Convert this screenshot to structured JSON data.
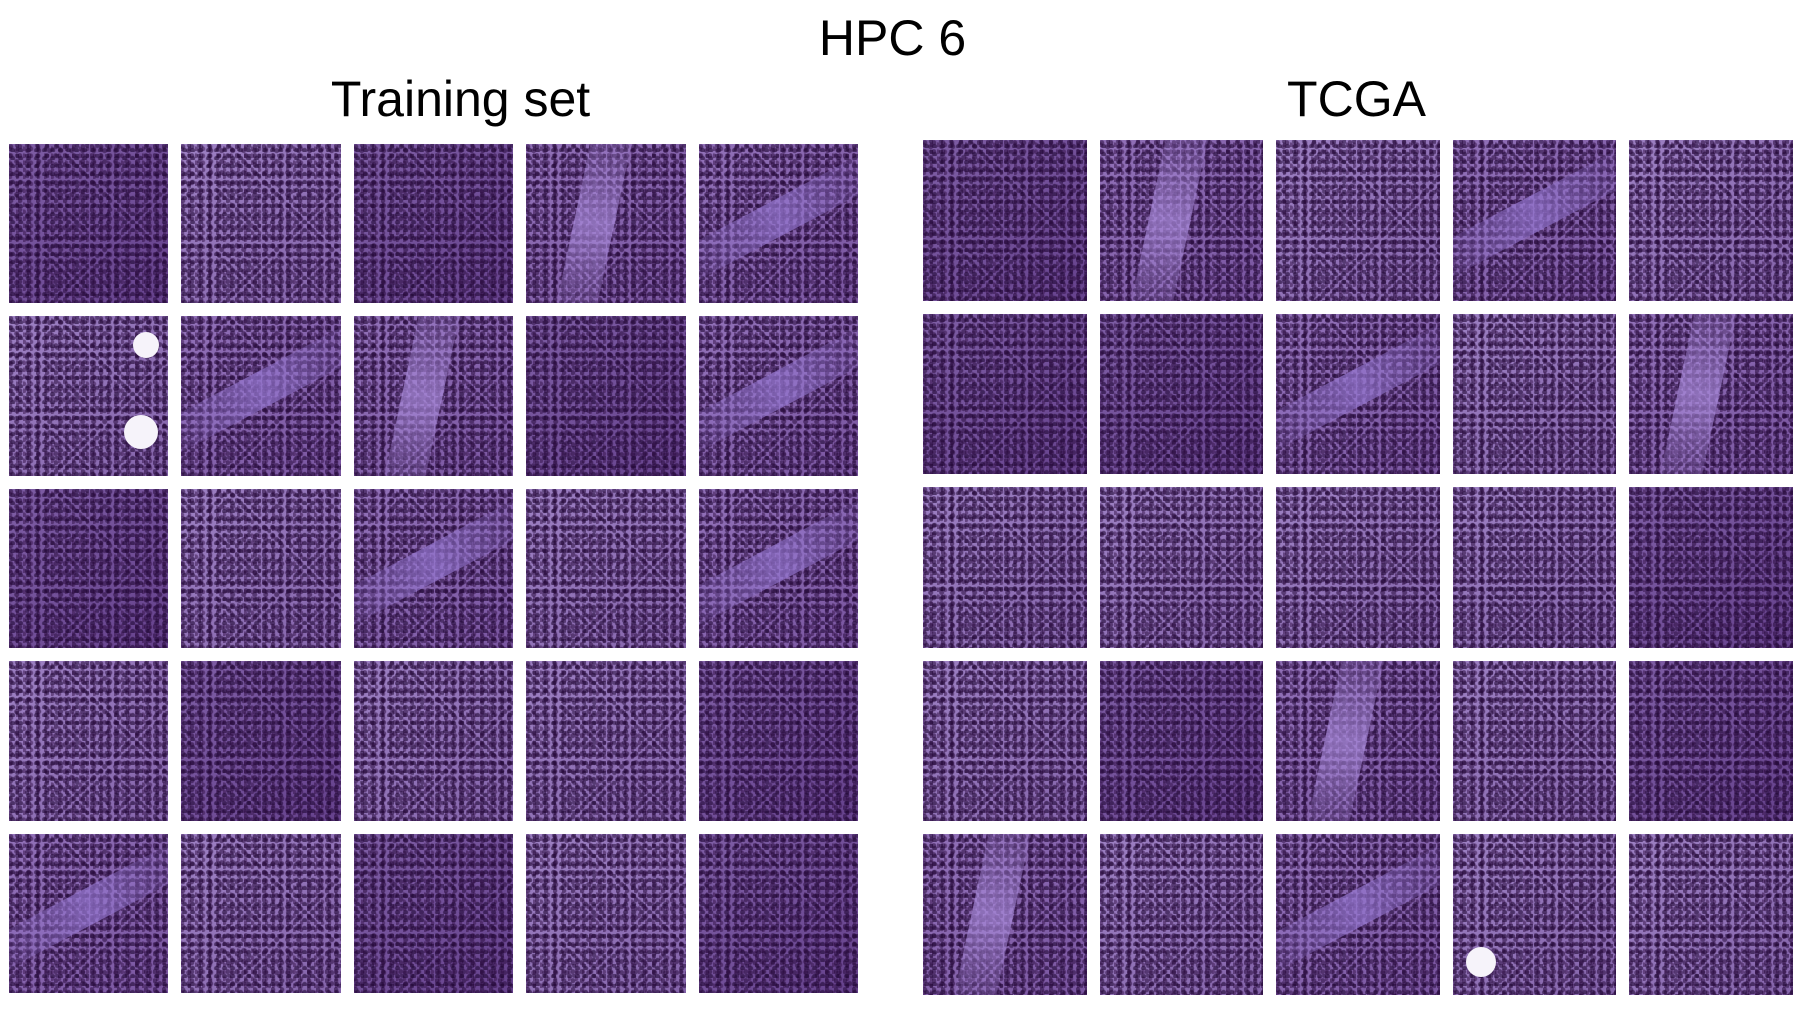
{
  "figure": {
    "title": "HPC 6",
    "panels": [
      {
        "label": "Training set",
        "rows": 5,
        "cols": 5,
        "tiles": [
          "dense",
          "light",
          "dense",
          "streak2",
          "streak",
          "light",
          "streak",
          "streak2",
          "dense",
          "streak",
          "dense",
          "light",
          "streak",
          "light",
          "streak",
          "light",
          "dense",
          "light",
          "light",
          "dense",
          "streak",
          "light",
          "dense",
          "light",
          "dense"
        ]
      },
      {
        "label": "TCGA",
        "rows": 5,
        "cols": 5,
        "tiles": [
          "dense",
          "streak2",
          "light",
          "streak",
          "light",
          "dense",
          "dense",
          "streak",
          "light",
          "streak2",
          "light",
          "light",
          "light",
          "light",
          "dense",
          "light",
          "dense",
          "streak2",
          "light",
          "dense",
          "streak2",
          "light",
          "streak",
          "light",
          "light"
        ]
      }
    ]
  }
}
